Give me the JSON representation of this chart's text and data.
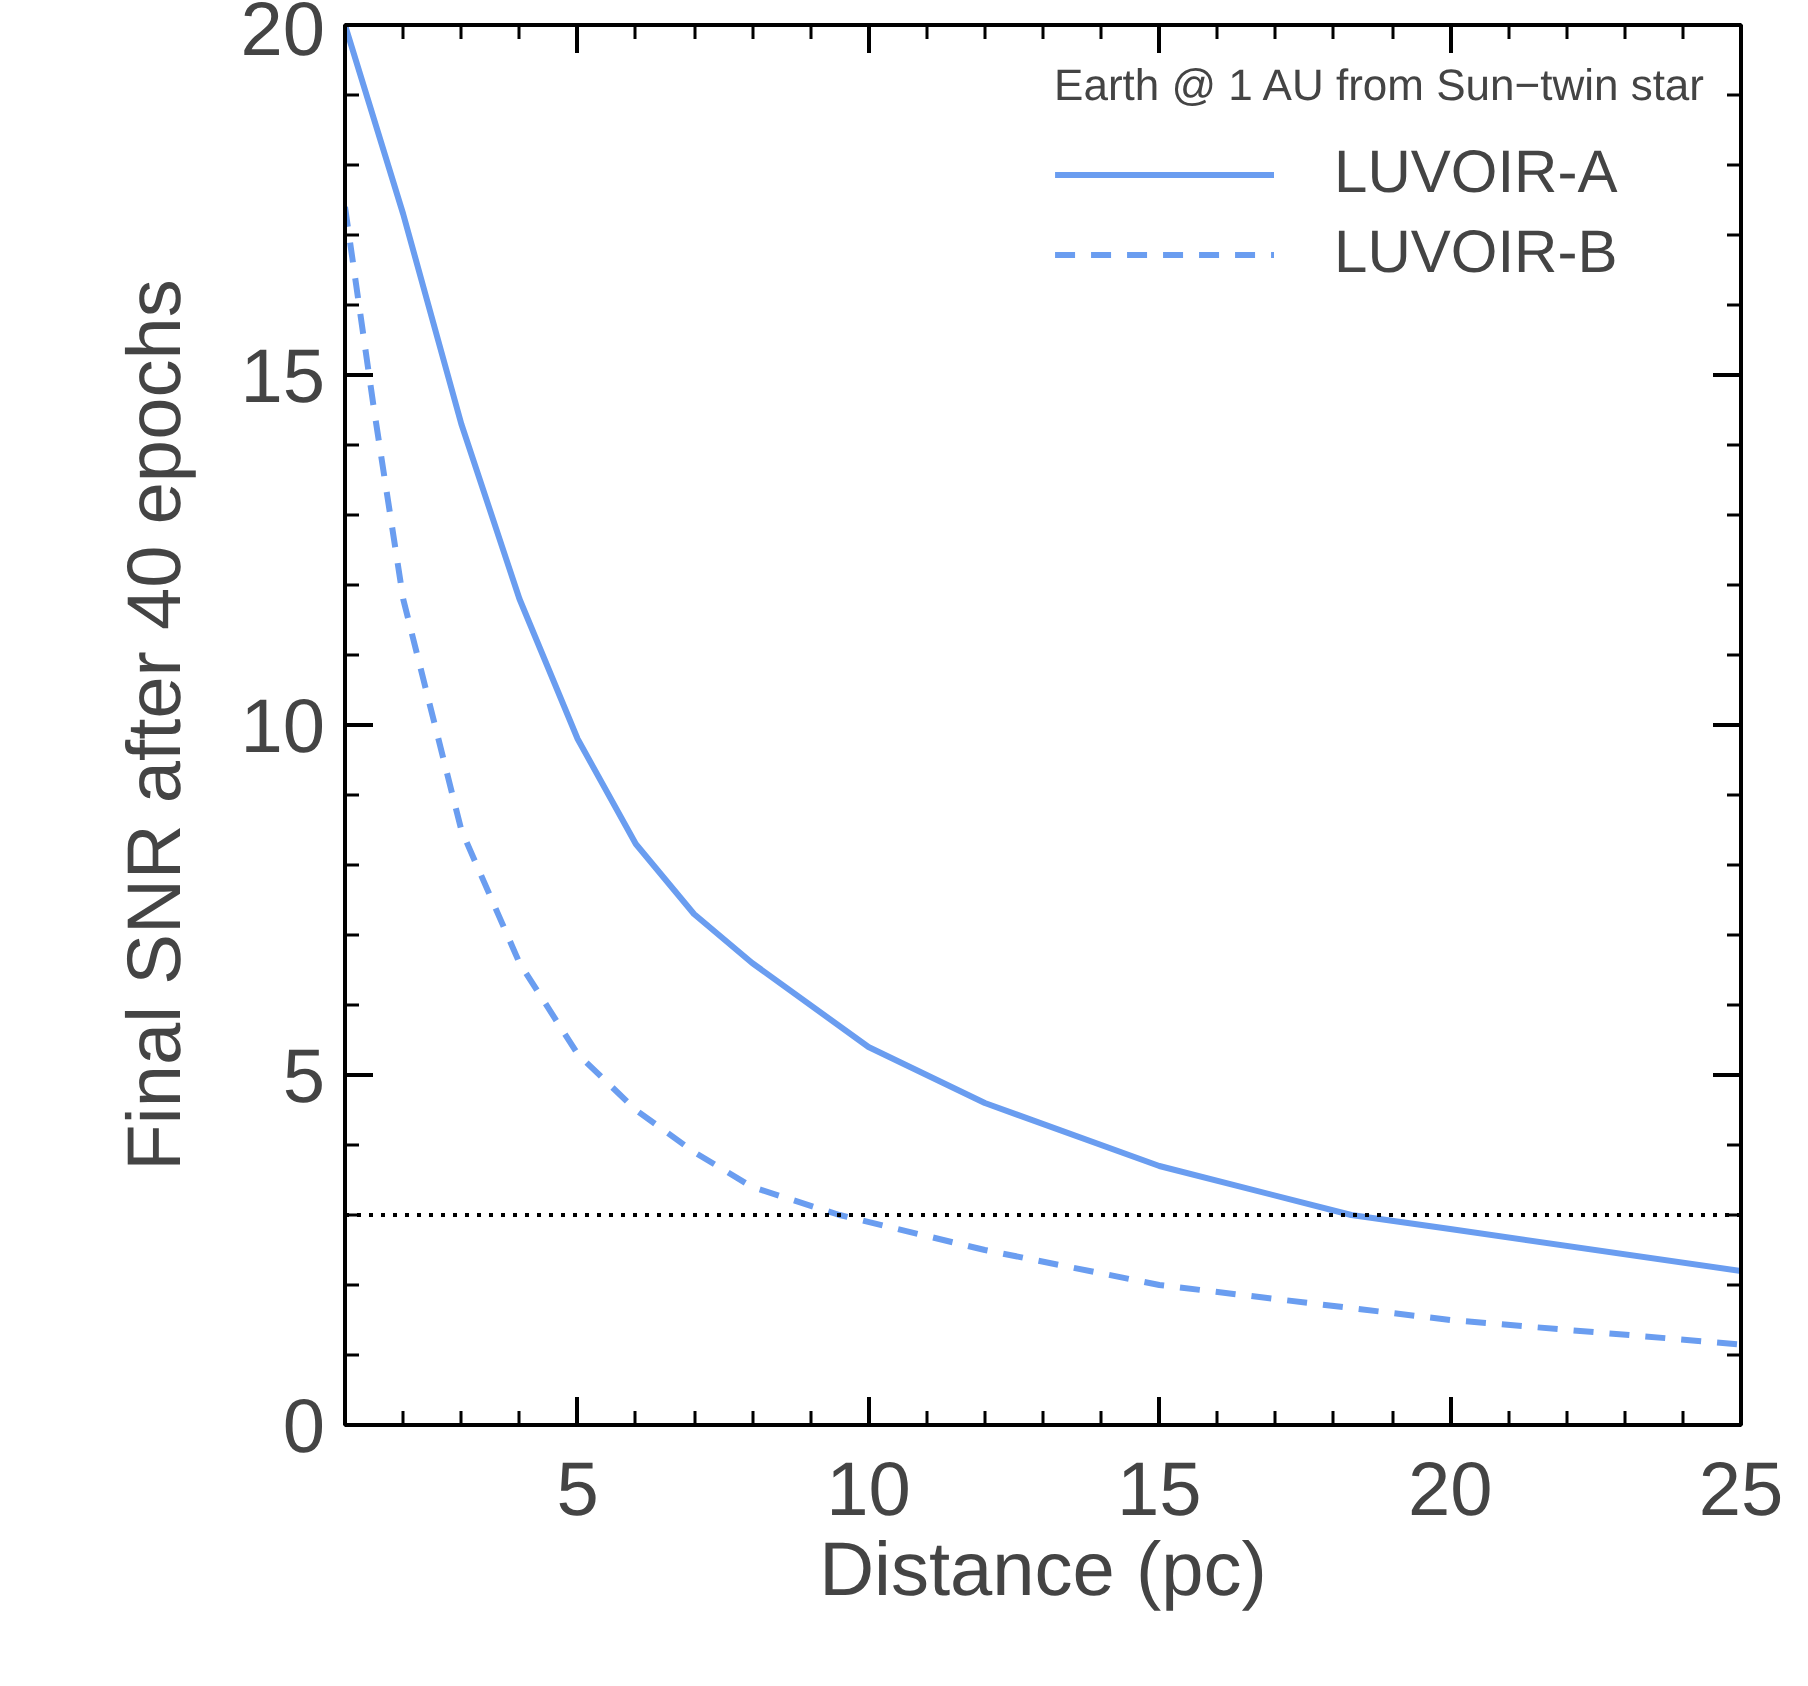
{
  "chart_data": {
    "type": "line",
    "xlabel": "Distance (pc)",
    "ylabel": "Final SNR after 40 epochs",
    "legend_title": "Earth @ 1 AU from Sun−twin star",
    "xlim": [
      1,
      25
    ],
    "ylim": [
      0,
      20
    ],
    "xticks": [
      5,
      10,
      15,
      20,
      25
    ],
    "yticks": [
      0,
      5,
      10,
      15,
      20
    ],
    "grid": false,
    "legend": "top right",
    "marker": "none",
    "series": [
      {
        "name": "LUVOIR-A",
        "color": "#6a9df0",
        "line_style": "solid",
        "x": [
          1,
          2,
          3,
          4,
          5,
          6,
          7,
          8,
          10,
          12,
          15,
          18.3,
          20,
          25
        ],
        "values": [
          20.0,
          17.3,
          14.3,
          11.8,
          9.8,
          8.3,
          7.3,
          6.6,
          5.4,
          4.6,
          3.7,
          3.0,
          2.8,
          2.2
        ]
      },
      {
        "name": "LUVOIR-B",
        "color": "#6a9df0",
        "line_style": "dashed",
        "x": [
          1,
          1.5,
          2,
          3,
          4,
          5,
          6,
          7,
          8,
          9.5,
          12,
          15,
          20,
          25
        ],
        "values": [
          17.4,
          14.5,
          11.8,
          8.5,
          6.6,
          5.3,
          4.5,
          3.9,
          3.4,
          3.0,
          2.5,
          2.0,
          1.5,
          1.15
        ]
      }
    ],
    "ref_lines": [
      {
        "axis": "y",
        "value": 3,
        "color": "#000000",
        "line_style": "dotted"
      }
    ]
  }
}
